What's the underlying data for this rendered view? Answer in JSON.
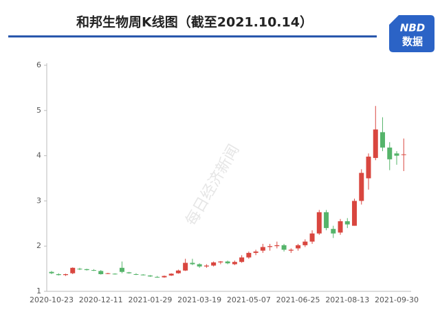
{
  "chart_data": {
    "type": "candlestick",
    "title": "和邦生物周K线图（截至2021.10.14）",
    "brand": "NBD",
    "brand_sub": "数据",
    "watermark": "每日经济新闻",
    "categories": [
      "2020-10-23",
      null,
      null,
      null,
      null,
      null,
      null,
      "2020-12-11",
      null,
      null,
      null,
      null,
      null,
      null,
      "2021-01-29",
      null,
      null,
      null,
      null,
      null,
      null,
      "2021-03-19",
      null,
      null,
      null,
      null,
      null,
      null,
      "2021-05-07",
      null,
      null,
      null,
      null,
      null,
      null,
      "2021-06-25",
      null,
      null,
      null,
      null,
      null,
      null,
      "2021-08-13",
      null,
      null,
      null,
      null,
      null,
      null,
      "2021-09-30",
      null
    ],
    "open": [
      1.43,
      1.38,
      1.36,
      1.4,
      1.5,
      1.49,
      1.47,
      1.45,
      1.39,
      1.39,
      1.52,
      1.42,
      1.38,
      1.37,
      1.35,
      1.32,
      1.31,
      1.35,
      1.4,
      1.46,
      1.63,
      1.6,
      1.55,
      1.57,
      1.64,
      1.66,
      1.6,
      1.65,
      1.75,
      1.85,
      1.9,
      1.98,
      2.0,
      2.02,
      1.9,
      1.95,
      2.02,
      2.1,
      2.28,
      2.75,
      2.38,
      2.3,
      2.55,
      2.45,
      3.0,
      3.5,
      3.95,
      4.52,
      4.18,
      4.05,
      4.02
    ],
    "high": [
      1.45,
      1.4,
      1.39,
      1.53,
      1.52,
      1.5,
      1.49,
      1.47,
      1.41,
      1.4,
      1.66,
      1.43,
      1.4,
      1.38,
      1.36,
      1.34,
      1.35,
      1.4,
      1.48,
      1.72,
      1.72,
      1.62,
      1.6,
      1.66,
      1.67,
      1.68,
      1.68,
      1.8,
      1.88,
      1.92,
      2.05,
      2.05,
      2.1,
      2.05,
      1.95,
      2.05,
      2.15,
      2.35,
      2.8,
      2.8,
      2.45,
      2.6,
      2.62,
      3.05,
      3.7,
      4.05,
      5.1,
      4.85,
      4.3,
      4.1,
      4.38
    ],
    "low": [
      1.38,
      1.35,
      1.34,
      1.38,
      1.47,
      1.46,
      1.45,
      1.37,
      1.38,
      1.37,
      1.4,
      1.39,
      1.36,
      1.35,
      1.32,
      1.3,
      1.3,
      1.34,
      1.39,
      1.45,
      1.58,
      1.52,
      1.52,
      1.55,
      1.6,
      1.6,
      1.58,
      1.63,
      1.72,
      1.8,
      1.85,
      1.9,
      1.95,
      1.88,
      1.85,
      1.9,
      1.98,
      2.05,
      2.25,
      2.35,
      2.18,
      2.25,
      2.4,
      2.45,
      2.92,
      3.25,
      3.9,
      4.1,
      3.68,
      3.8,
      3.66
    ],
    "close": [
      1.4,
      1.36,
      1.38,
      1.52,
      1.49,
      1.47,
      1.46,
      1.38,
      1.4,
      1.38,
      1.43,
      1.4,
      1.37,
      1.36,
      1.33,
      1.31,
      1.34,
      1.39,
      1.46,
      1.63,
      1.6,
      1.55,
      1.57,
      1.64,
      1.66,
      1.62,
      1.65,
      1.75,
      1.85,
      1.88,
      1.98,
      2.0,
      2.02,
      1.92,
      1.92,
      2.02,
      2.1,
      2.28,
      2.75,
      2.4,
      2.28,
      2.55,
      2.48,
      3.0,
      3.62,
      3.98,
      4.58,
      4.18,
      3.92,
      4.0,
      4.03
    ],
    "up_color": "#d9463f",
    "down_color": "#55b46a",
    "ylim": [
      1,
      6
    ],
    "yticks": [
      1,
      2,
      3,
      4,
      5,
      6
    ],
    "grid": false
  }
}
